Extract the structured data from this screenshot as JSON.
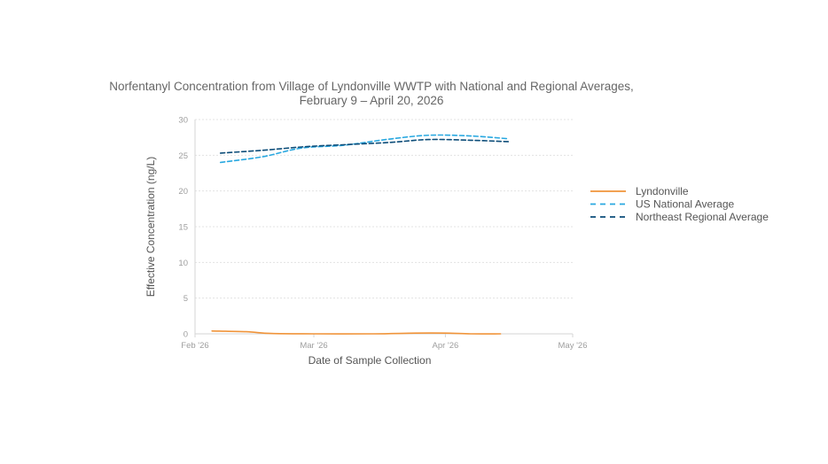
{
  "chart_data": {
    "type": "line",
    "title": "Norfentanyl Concentration from Village of Lyndonville WWTP with National and Regional Averages,",
    "subtitle": "February 9 – April 20, 2026",
    "xlabel": "Date of Sample Collection",
    "ylabel": "Effective Concentration (ng/L)",
    "ylim": [
      0,
      30
    ],
    "yticks": [
      0,
      5,
      10,
      15,
      20,
      25,
      30
    ],
    "xlim": [
      "2026-02-01",
      "2026-05-01"
    ],
    "xticks": [
      {
        "date": "2026-02-01",
        "label": "Feb '26"
      },
      {
        "date": "2026-03-01",
        "label": "Mar '26"
      },
      {
        "date": "2026-04-01",
        "label": "Apr '26"
      },
      {
        "date": "2026-05-01",
        "label": "May '26"
      }
    ],
    "grid": true,
    "legend_position": "right",
    "series": [
      {
        "name": "Lyndonville",
        "color": "#f0943a",
        "dash": "solid",
        "points": [
          {
            "x": "2026-02-05",
            "y": 0.4
          },
          {
            "x": "2026-02-13",
            "y": 0.3
          },
          {
            "x": "2026-02-19",
            "y": 0.05
          },
          {
            "x": "2026-03-01",
            "y": 0.0
          },
          {
            "x": "2026-03-15",
            "y": 0.0
          },
          {
            "x": "2026-03-25",
            "y": 0.1
          },
          {
            "x": "2026-04-01",
            "y": 0.1
          },
          {
            "x": "2026-04-07",
            "y": 0.0
          },
          {
            "x": "2026-04-14",
            "y": 0.0
          }
        ]
      },
      {
        "name": "US National Average",
        "color": "#29a8e0",
        "dash": "dashed",
        "points": [
          {
            "x": "2026-02-07",
            "y": 24.0
          },
          {
            "x": "2026-02-17",
            "y": 24.8
          },
          {
            "x": "2026-02-26",
            "y": 26.0
          },
          {
            "x": "2026-03-08",
            "y": 26.4
          },
          {
            "x": "2026-03-18",
            "y": 27.2
          },
          {
            "x": "2026-03-28",
            "y": 27.8
          },
          {
            "x": "2026-04-07",
            "y": 27.7
          },
          {
            "x": "2026-04-16",
            "y": 27.3
          }
        ]
      },
      {
        "name": "Northeast Regional Average",
        "color": "#0d4d79",
        "dash": "dashed",
        "points": [
          {
            "x": "2026-02-07",
            "y": 25.3
          },
          {
            "x": "2026-02-17",
            "y": 25.7
          },
          {
            "x": "2026-02-27",
            "y": 26.2
          },
          {
            "x": "2026-03-09",
            "y": 26.5
          },
          {
            "x": "2026-03-19",
            "y": 26.8
          },
          {
            "x": "2026-03-28",
            "y": 27.2
          },
          {
            "x": "2026-04-07",
            "y": 27.1
          },
          {
            "x": "2026-04-16",
            "y": 26.9
          }
        ]
      }
    ]
  }
}
